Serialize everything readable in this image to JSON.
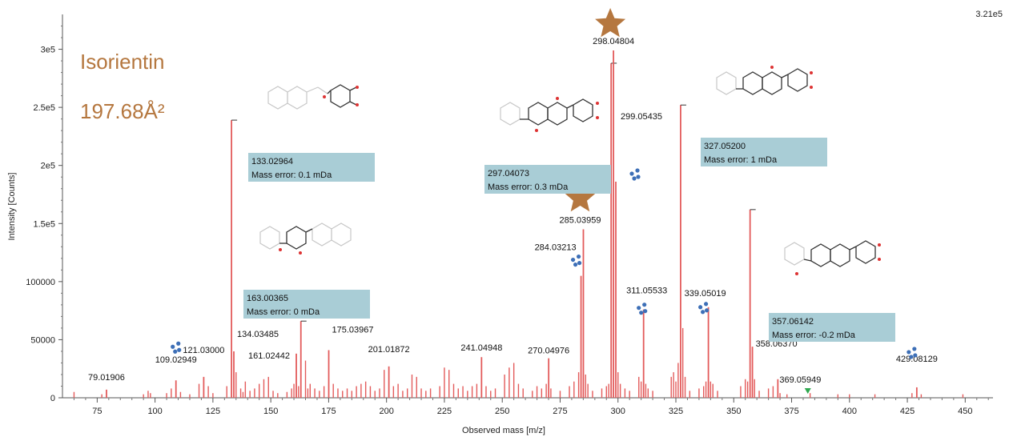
{
  "compound": {
    "name": "Isorientin",
    "ccs": "197.68Å²"
  },
  "scale_max": "3.21e5",
  "colors": {
    "peak": "#e35b5b",
    "accent": "#b5773f",
    "box": "#a9cdd6",
    "fragment_icon": "#3d6fb7",
    "triangle": "#2fa84f"
  },
  "chart_data": {
    "type": "bar",
    "title": "",
    "xlabel": "Observed mass [m/z]",
    "ylabel": "Intensity [Counts]",
    "xlim": [
      60,
      462
    ],
    "ylim": [
      0,
      330000
    ],
    "x_ticks": [
      "75",
      "100",
      "125",
      "150",
      "175",
      "200",
      "225",
      "250",
      "275",
      "300",
      "325",
      "350",
      "375",
      "400",
      "425",
      "450"
    ],
    "y_ticks": [
      {
        "value": 0,
        "label": "0"
      },
      {
        "value": 50000,
        "label": "50000"
      },
      {
        "value": 100000,
        "label": "100000"
      },
      {
        "value": 150000,
        "label": "1.5e5"
      },
      {
        "value": 200000,
        "label": "2e5"
      },
      {
        "value": 250000,
        "label": "2.5e5"
      },
      {
        "value": 300000,
        "label": "3e5"
      }
    ],
    "labeled_peaks": [
      {
        "mz": 79.01906,
        "label": "79.01906",
        "intensity": 7000
      },
      {
        "mz": 109.02949,
        "label": "109.02949",
        "intensity": 15000
      },
      {
        "mz": 121.03,
        "label": "121.03000",
        "intensity": 18000
      },
      {
        "mz": 133.02964,
        "label": "133.02964",
        "intensity": 239000
      },
      {
        "mz": 134.03485,
        "label": "134.03485",
        "intensity": 40000
      },
      {
        "mz": 161.02442,
        "label": "161.02442",
        "intensity": 38000
      },
      {
        "mz": 163.00365,
        "label": "163.00365",
        "intensity": 66000
      },
      {
        "mz": 175.03967,
        "label": "175.03967",
        "intensity": 41000
      },
      {
        "mz": 201.01872,
        "label": "201.01872",
        "intensity": 27000
      },
      {
        "mz": 241.04948,
        "label": "241.04948",
        "intensity": 35000
      },
      {
        "mz": 270.04976,
        "label": "270.04976",
        "intensity": 34000
      },
      {
        "mz": 284.03213,
        "label": "284.03213",
        "intensity": 105000
      },
      {
        "mz": 285.03959,
        "label": "285.03959",
        "intensity": 145000
      },
      {
        "mz": 297.04073,
        "label": "297.04073",
        "intensity": 288000
      },
      {
        "mz": 298.04804,
        "label": "298.04804",
        "intensity": 299000
      },
      {
        "mz": 299.05435,
        "label": "299.05435",
        "intensity": 186000
      },
      {
        "mz": 311.05533,
        "label": "311.05533",
        "intensity": 76000
      },
      {
        "mz": 327.052,
        "label": "327.05200",
        "intensity": 252000
      },
      {
        "mz": 339.05019,
        "label": "339.05019",
        "intensity": 78000
      },
      {
        "mz": 357.06142,
        "label": "357.06142",
        "intensity": 162000
      },
      {
        "mz": 358.0637,
        "label": "358.06370",
        "intensity": 44000
      },
      {
        "mz": 369.05949,
        "label": "369.05949",
        "intensity": 16000
      },
      {
        "mz": 429.08129,
        "label": "429.08129",
        "intensity": 9000
      }
    ],
    "minor_peaks": [
      [
        65,
        5000
      ],
      [
        77,
        3000
      ],
      [
        95,
        3000
      ],
      [
        97,
        6000
      ],
      [
        98,
        4000
      ],
      [
        105,
        4000
      ],
      [
        107,
        8000
      ],
      [
        111,
        5000
      ],
      [
        115,
        3000
      ],
      [
        119,
        12000
      ],
      [
        123,
        10000
      ],
      [
        125,
        4000
      ],
      [
        131,
        10000
      ],
      [
        135,
        22000
      ],
      [
        137,
        8000
      ],
      [
        138,
        5000
      ],
      [
        139,
        14000
      ],
      [
        141,
        6000
      ],
      [
        143,
        8000
      ],
      [
        145,
        12000
      ],
      [
        147,
        16000
      ],
      [
        149,
        18000
      ],
      [
        151,
        6000
      ],
      [
        153,
        4000
      ],
      [
        157,
        5000
      ],
      [
        159,
        8000
      ],
      [
        160,
        12000
      ],
      [
        162,
        10000
      ],
      [
        165,
        32000
      ],
      [
        166,
        8000
      ],
      [
        167,
        12000
      ],
      [
        169,
        8000
      ],
      [
        171,
        6000
      ],
      [
        173,
        10000
      ],
      [
        177,
        12000
      ],
      [
        179,
        8000
      ],
      [
        181,
        6000
      ],
      [
        183,
        8000
      ],
      [
        185,
        6000
      ],
      [
        187,
        10000
      ],
      [
        189,
        12000
      ],
      [
        191,
        14000
      ],
      [
        193,
        10000
      ],
      [
        195,
        6000
      ],
      [
        197,
        8000
      ],
      [
        199,
        24000
      ],
      [
        203,
        10000
      ],
      [
        205,
        12000
      ],
      [
        207,
        6000
      ],
      [
        209,
        8000
      ],
      [
        211,
        20000
      ],
      [
        213,
        18000
      ],
      [
        215,
        8000
      ],
      [
        217,
        6000
      ],
      [
        219,
        8000
      ],
      [
        223,
        10000
      ],
      [
        225,
        26000
      ],
      [
        227,
        24000
      ],
      [
        229,
        12000
      ],
      [
        231,
        8000
      ],
      [
        233,
        10000
      ],
      [
        235,
        6000
      ],
      [
        237,
        10000
      ],
      [
        239,
        12000
      ],
      [
        243,
        10000
      ],
      [
        245,
        6000
      ],
      [
        247,
        8000
      ],
      [
        251,
        20000
      ],
      [
        253,
        26000
      ],
      [
        255,
        30000
      ],
      [
        257,
        12000
      ],
      [
        259,
        8000
      ],
      [
        263,
        6000
      ],
      [
        265,
        10000
      ],
      [
        267,
        8000
      ],
      [
        269,
        12000
      ],
      [
        271,
        8000
      ],
      [
        275,
        6000
      ],
      [
        279,
        10000
      ],
      [
        281,
        14000
      ],
      [
        283,
        22000
      ],
      [
        286,
        20000
      ],
      [
        287,
        12000
      ],
      [
        289,
        6000
      ],
      [
        293,
        8000
      ],
      [
        295,
        10000
      ],
      [
        296,
        12000
      ],
      [
        300,
        22000
      ],
      [
        301,
        12000
      ],
      [
        303,
        8000
      ],
      [
        305,
        6000
      ],
      [
        309,
        18000
      ],
      [
        310,
        14000
      ],
      [
        312,
        12000
      ],
      [
        313,
        8000
      ],
      [
        315,
        6000
      ],
      [
        323,
        18000
      ],
      [
        324,
        22000
      ],
      [
        325,
        14000
      ],
      [
        326,
        30000
      ],
      [
        328,
        60000
      ],
      [
        329,
        18000
      ],
      [
        331,
        6000
      ],
      [
        335,
        8000
      ],
      [
        337,
        10000
      ],
      [
        338,
        14000
      ],
      [
        340,
        14000
      ],
      [
        341,
        12000
      ],
      [
        343,
        6000
      ],
      [
        353,
        10000
      ],
      [
        355,
        16000
      ],
      [
        356,
        14000
      ],
      [
        359,
        16000
      ],
      [
        361,
        6000
      ],
      [
        365,
        8000
      ],
      [
        367,
        10000
      ],
      [
        370,
        4000
      ],
      [
        373,
        3000
      ],
      [
        383,
        4000
      ],
      [
        395,
        3000
      ],
      [
        400,
        3000
      ],
      [
        411,
        3000
      ],
      [
        427,
        4000
      ],
      [
        431,
        3000
      ],
      [
        449,
        3000
      ]
    ],
    "annotations": [
      {
        "mz": "133.02964",
        "error": "Mass error: 0.1 mDa"
      },
      {
        "mz": "163.00365",
        "error": "Mass error: 0 mDa"
      },
      {
        "mz": "297.04073",
        "error": "Mass error: 0.3 mDa"
      },
      {
        "mz": "327.05200",
        "error": "Mass error: 1 mDa"
      },
      {
        "mz": "357.06142",
        "error": "Mass error: -0.2 mDa"
      }
    ],
    "stars_at": [
      "298.04804",
      "285.03959"
    ],
    "fragment_icons_at": [
      "109.02949",
      "284.03213",
      "299.05435",
      "311.05533",
      "339.05019",
      "429.08129"
    ],
    "triangle_at": 382
  }
}
